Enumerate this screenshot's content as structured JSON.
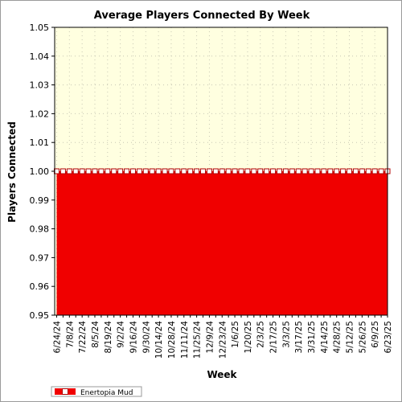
{
  "chart_data": {
    "type": "area",
    "title": "Average Players Connected By Week",
    "xlabel": "Week",
    "ylabel": "Players Connected",
    "ylim": [
      0.95,
      1.05
    ],
    "y_ticks": [
      "0.95",
      "0.96",
      "0.97",
      "0.98",
      "0.99",
      "1.00",
      "1.01",
      "1.02",
      "1.03",
      "1.04",
      "1.05"
    ],
    "x_tick_labels": [
      "6/24/24",
      "7/8/24",
      "7/22/24",
      "8/5/24",
      "8/19/24",
      "9/2/24",
      "9/16/24",
      "9/30/24",
      "10/14/24",
      "10/28/24",
      "11/11/24",
      "11/25/24",
      "12/9/24",
      "12/23/24",
      "1/6/25",
      "1/20/25",
      "2/3/25",
      "2/17/25",
      "3/3/25",
      "3/17/25",
      "3/31/25",
      "4/14/25",
      "4/28/25",
      "5/12/25",
      "5/26/25",
      "6/9/25",
      "6/23/25"
    ],
    "num_weeks": 53,
    "series": [
      {
        "name": "Enertopia Mud",
        "values": [
          1,
          1,
          1,
          1,
          1,
          1,
          1,
          1,
          1,
          1,
          1,
          1,
          1,
          1,
          1,
          1,
          1,
          1,
          1,
          1,
          1,
          1,
          1,
          1,
          1,
          1,
          1,
          1,
          1,
          1,
          1,
          1,
          1,
          1,
          1,
          1,
          1,
          1,
          1,
          1,
          1,
          1,
          1,
          1,
          1,
          1,
          1,
          1,
          1,
          1,
          1,
          1,
          1
        ]
      }
    ],
    "grid": true,
    "legend_position": "bottom-left",
    "colors": {
      "plot_background": "#ffffe0",
      "area_fill": "#f00000",
      "marker_fill": "#ffffff",
      "marker_stroke": "#b00000",
      "grid": "#c8c8b4"
    }
  }
}
